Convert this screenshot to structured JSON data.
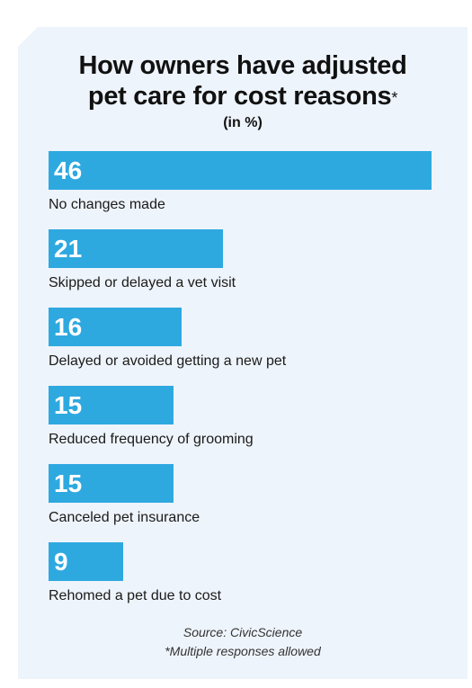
{
  "chart_data": {
    "type": "bar",
    "orientation": "horizontal",
    "title_lines": [
      "How owners have adjusted",
      "pet care for cost reasons"
    ],
    "title_suffix": "*",
    "subtitle": "(in %)",
    "categories": [
      "No changes made",
      "Skipped or delayed a vet visit",
      "Delayed or avoided getting a new pet",
      "Reduced frequency of grooming",
      "Canceled pet insurance",
      "Rehomed a pet due to cost"
    ],
    "values": [
      46,
      21,
      16,
      15,
      15,
      9
    ],
    "bar_color": "#2ea9e0",
    "xlim": [
      0,
      46
    ],
    "grid": false,
    "legend": "none"
  },
  "footer": {
    "source": "Source: CivicScience",
    "note": "*Multiple responses allowed"
  },
  "colors": {
    "card_background": "#eef4fb",
    "bar": "#2ea9e0",
    "text": "#111111"
  }
}
